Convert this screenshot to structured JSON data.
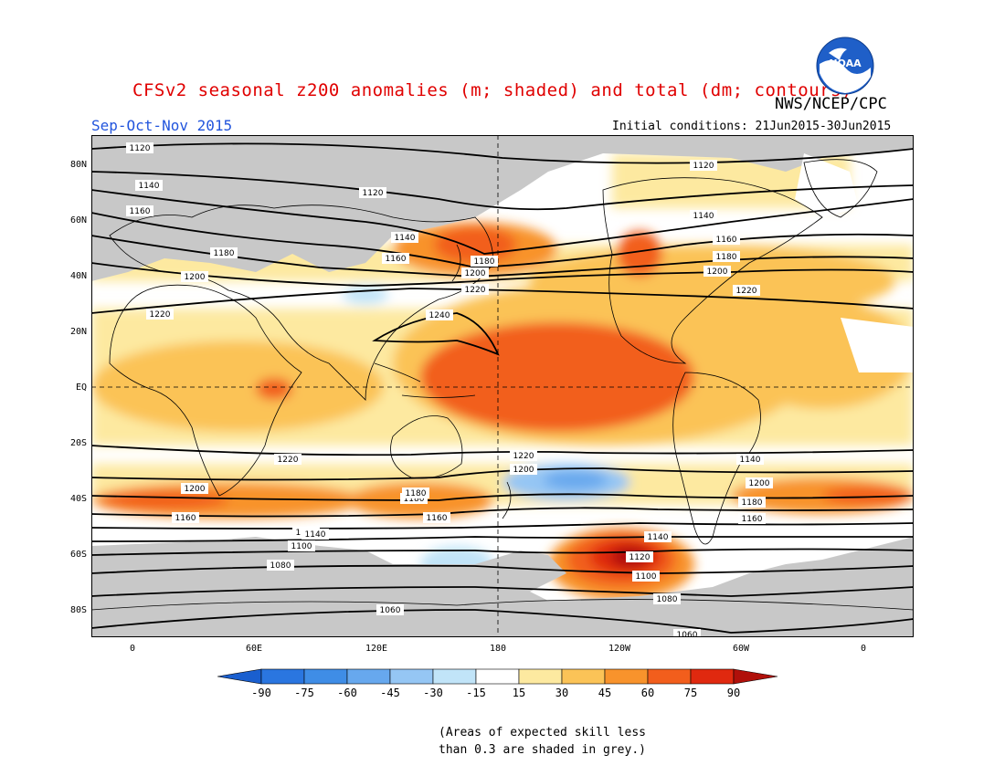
{
  "title": "CFSv2 seasonal z200 anomalies (m; shaded) and total (dm; contours)",
  "agency": "NWS/NCEP/CPC",
  "logo_text": "NOAA",
  "season": "Sep-Oct-Nov 2015",
  "initial_conditions": "Initial conditions: 21Jun2015-30Jun2015",
  "lat_labels": [
    "80N",
    "60N",
    "40N",
    "20N",
    "EQ",
    "20S",
    "40S",
    "60S",
    "80S"
  ],
  "lon_labels": [
    "0",
    "60E",
    "120E",
    "180",
    "120W",
    "60W",
    "0"
  ],
  "colorbar": {
    "levels": [
      "-90",
      "-75",
      "-60",
      "-45",
      "-30",
      "-15",
      "15",
      "30",
      "45",
      "60",
      "75",
      "90"
    ],
    "colors": [
      "#1a5fcf",
      "#2a76e0",
      "#3f8de6",
      "#67a8ee",
      "#95c6f4",
      "#c1e4f8",
      "#ffffff",
      "#fde9a0",
      "#fbc357",
      "#f8932c",
      "#f25e1c",
      "#e0290f",
      "#b0100a"
    ]
  },
  "contour_labels": [
    "1120",
    "1120",
    "1120",
    "1140",
    "1140",
    "1140",
    "1140",
    "1160",
    "1160",
    "1160",
    "1160",
    "1160",
    "1180",
    "1180",
    "1180",
    "1180",
    "1180",
    "1200",
    "1200",
    "1200",
    "1200",
    "1200",
    "1220",
    "1220",
    "1220",
    "1220",
    "1240",
    "1200",
    "1220",
    "1140",
    "1120",
    "1100",
    "1080",
    "1060",
    "1060",
    "1120",
    "1100",
    "1080",
    "1140",
    "1160",
    "1180"
  ],
  "note_line1": "(Areas of expected skill less",
  "note_line2": "than 0.3 are shaded in grey.)"
}
